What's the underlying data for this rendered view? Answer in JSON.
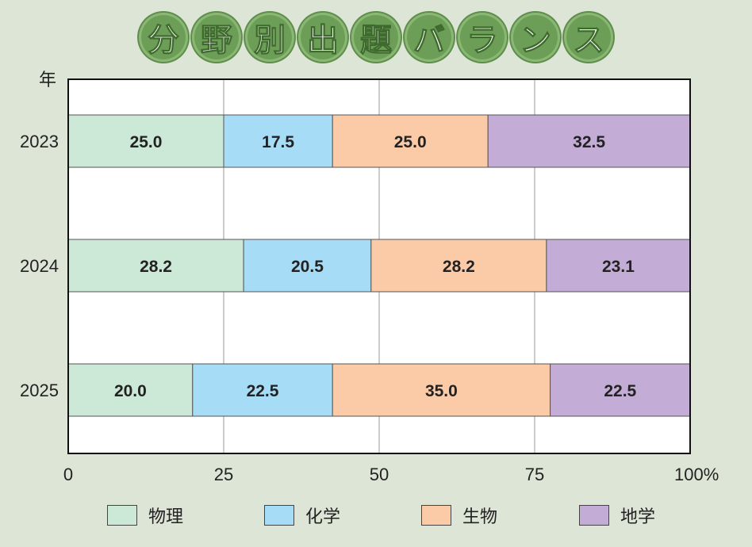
{
  "title_chars": [
    "分",
    "野",
    "別",
    "出",
    "題",
    "バ",
    "ラ",
    "ン",
    "ス"
  ],
  "colors": {
    "background": "#dde5d6",
    "title_bubble": "#6d9e58",
    "plot_bg": "#ffffff",
    "grid": "#999999"
  },
  "chart_data": {
    "type": "bar",
    "orientation": "horizontal",
    "stacked": true,
    "title": "分野別出題バランス",
    "ylabel": "年",
    "xlim": [
      0,
      100
    ],
    "x_ticks": [
      {
        "value": 0,
        "label": "0"
      },
      {
        "value": 25,
        "label": "25"
      },
      {
        "value": 50,
        "label": "50"
      },
      {
        "value": 75,
        "label": "75"
      },
      {
        "value": 100,
        "label": "100%"
      }
    ],
    "grid": true,
    "legend_position": "bottom",
    "categories": [
      "2023",
      "2024",
      "2025"
    ],
    "series": [
      {
        "name": "物理",
        "color": "#cce9d7",
        "values": [
          25.0,
          28.2,
          20.0
        ],
        "labels": [
          "25.0",
          "28.2",
          "20.0"
        ]
      },
      {
        "name": "化学",
        "color": "#a6dcf6",
        "values": [
          17.5,
          20.5,
          22.5
        ],
        "labels": [
          "17.5",
          "20.5",
          "22.5"
        ]
      },
      {
        "name": "生物",
        "color": "#fbcba8",
        "values": [
          25.0,
          28.2,
          35.0
        ],
        "labels": [
          "25.0",
          "28.2",
          "35.0"
        ]
      },
      {
        "name": "地学",
        "color": "#c3acd6",
        "values": [
          32.5,
          23.1,
          22.5
        ],
        "labels": [
          "32.5",
          "23.1",
          "22.5"
        ]
      }
    ]
  }
}
